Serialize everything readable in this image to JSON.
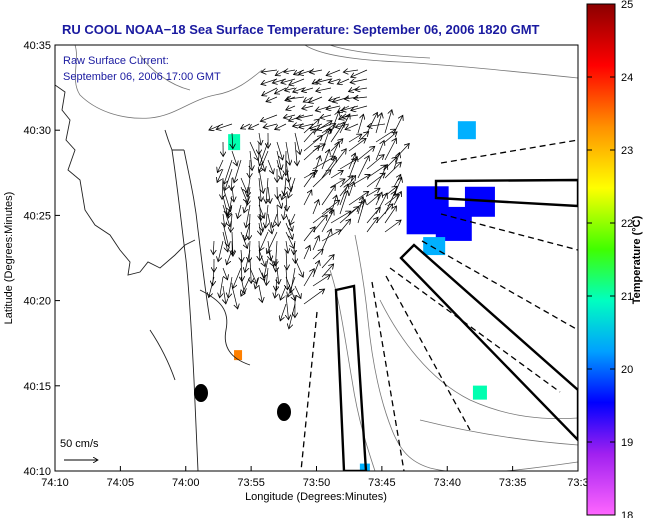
{
  "title": "RU COOL  NOAA−18  Sea Surface Temperature:  September 06, 2006 1820 GMT",
  "subtitle_line1": "Raw Surface Current:",
  "subtitle_line2": "September 06, 2006 17:00 GMT",
  "scale_label": "50 cm/s",
  "colorbar_label": "Temperature (°C)",
  "chart_data": {
    "type": "heatmap",
    "xlabel": "Longitude (Degrees:Minutes)",
    "ylabel": "Latitude (Degrees:Minutes)",
    "x_ticks": [
      "74:10",
      "74:05",
      "74:00",
      "73:55",
      "73:50",
      "73:45",
      "73:40",
      "73:35",
      "73:3"
    ],
    "x_range_minutes_west": [
      4450,
      4410
    ],
    "y_ticks": [
      "40:10",
      "40:15",
      "40:20",
      "40:25",
      "40:30",
      "40:35"
    ],
    "y_range_minutes": [
      2410,
      2435
    ],
    "colorbar": {
      "min": 18,
      "max": 25,
      "ticks": [
        "18",
        "19",
        "20",
        "21",
        "22",
        "23",
        "24",
        "25"
      ],
      "colors": [
        "#ff66ff",
        "#a020f0",
        "#0000ff",
        "#00b0ff",
        "#00ffb0",
        "#40ff00",
        "#ffff00",
        "#ff8000",
        "#ff0000",
        "#8b0000"
      ]
    },
    "sst_patches": [
      {
        "lon": 4421.5,
        "lat": 2425.3,
        "temp": 19.3
      },
      {
        "lon": 4419.5,
        "lat": 2424.5,
        "temp": 19.5
      },
      {
        "lon": 4417.5,
        "lat": 2425.8,
        "temp": 19.2
      },
      {
        "lon": 4421.0,
        "lat": 2423.2,
        "temp": 20.6
      },
      {
        "lon": 4418.5,
        "lat": 2430.0,
        "temp": 20.5
      },
      {
        "lon": 4436.3,
        "lat": 2429.3,
        "temp": 20.9
      },
      {
        "lon": 4417.5,
        "lat": 2414.6,
        "temp": 21.0
      },
      {
        "lon": 4436.0,
        "lat": 2416.8,
        "temp": 23.5
      },
      {
        "lon": 4426.3,
        "lat": 2410.2,
        "temp": 20.6
      }
    ]
  }
}
